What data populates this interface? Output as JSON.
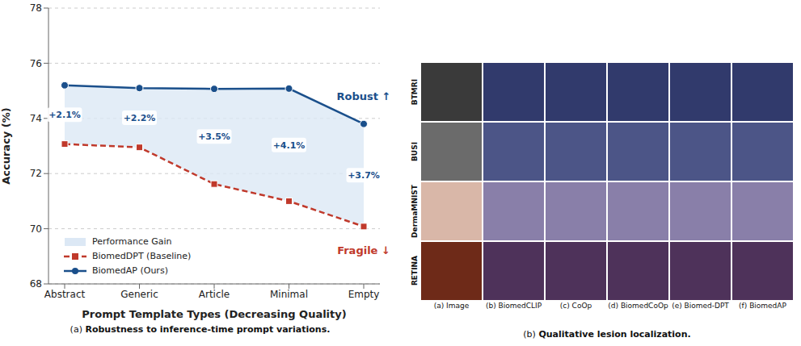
{
  "chart_data": {
    "type": "line",
    "x_label": "Prompt Template Types (Decreasing Quality)",
    "y_label": "Accuracy (%)",
    "categories": [
      "Abstract",
      "Generic",
      "Article",
      "Minimal",
      "Empty"
    ],
    "series": [
      {
        "name": "BiomedDPT (Baseline)",
        "color": "#c0392b",
        "marker": "square",
        "line_style": "dashed",
        "values": [
          73.07,
          72.95,
          71.62,
          71.0,
          70.08
        ],
        "end_label": "Fragile ↓"
      },
      {
        "name": "BiomedAP (Ours)",
        "color": "#1a4f8b",
        "marker": "circle",
        "line_style": "solid",
        "values": [
          75.2,
          75.1,
          75.07,
          75.08,
          73.8
        ],
        "end_label": "Robust ↑"
      }
    ],
    "band": {
      "name": "Performance Gain",
      "color": "#dce8f5"
    },
    "annotations": [
      "+2.1%",
      "+2.2%",
      "+3.5%",
      "+4.1%",
      "+3.7%"
    ],
    "ylim": [
      68,
      78
    ],
    "yticks": [
      68,
      70,
      72,
      74,
      76,
      78
    ],
    "grid": true,
    "legend": "lower left"
  },
  "figure": {
    "caption_a": {
      "label": "(a)",
      "text": "Robustness to inference-time prompt variations."
    },
    "panel_b": {
      "rows": [
        "BTMRI",
        "BUSI",
        "DermaMNIST",
        "RETINA"
      ],
      "columns": [
        "(a) Image",
        "(b) BiomedCLIP",
        "(c) CoOp",
        "(d) BiomedCoOp",
        "(e) Biomed-DPT",
        "(f) BiomedAP"
      ],
      "caption": {
        "label": "(b)",
        "text": "Qualitative lesion localization."
      }
    }
  }
}
